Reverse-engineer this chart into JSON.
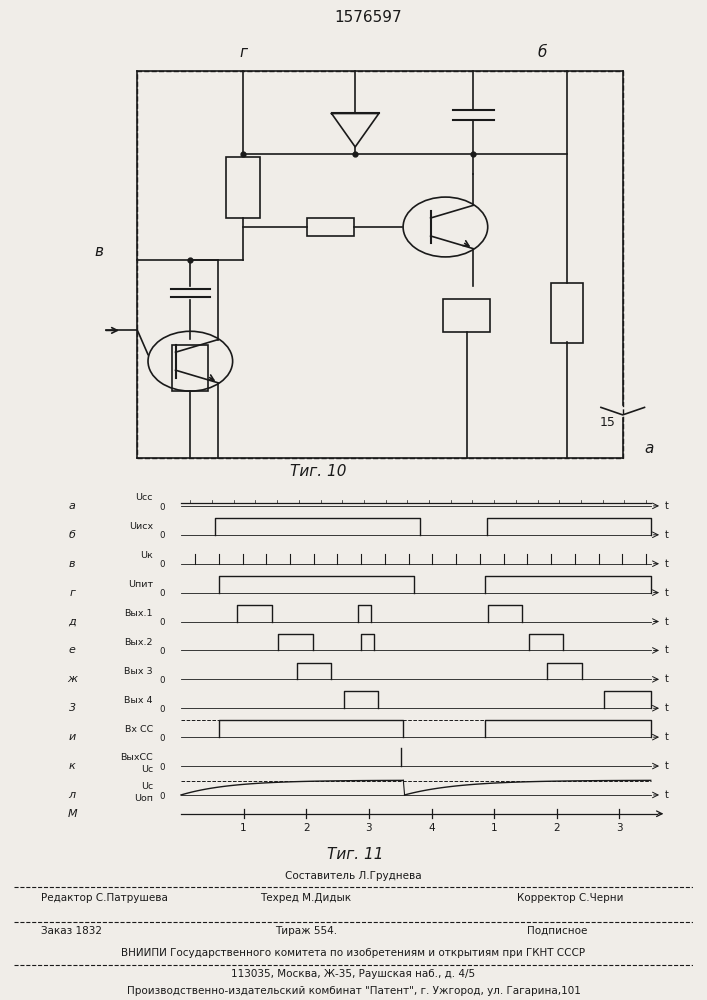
{
  "title_number": "1576597",
  "fig10_caption": "Τиг. 10",
  "fig11_caption": "Τиг. 11",
  "background_color": "#f0ede8",
  "line_color": "#1a1a1a",
  "row_labels": [
    "а",
    "б",
    "в",
    "г",
    "д",
    "е",
    "ж",
    "3",
    "и",
    "к",
    "л"
  ],
  "signal_labels": [
    "Uсс",
    "Uисх",
    "Uк",
    "Uпит",
    "Вых.1",
    "Вых.2",
    "Вых 3",
    "Вых 4",
    "Вх СС",
    "ВыхСС",
    "Uс"
  ],
  "signal_labels2": [
    "",
    "",
    "",
    "",
    "",
    "",
    "",
    "",
    "",
    "Uс",
    "Uоп"
  ],
  "time_axis_label": "М",
  "time_ticks": [
    "1",
    "2",
    "3",
    "4",
    "1",
    "2",
    "3"
  ],
  "footer_staff": "Составитель Л.Груднева",
  "footer_editor": "Редактор С.Патрушева",
  "footer_techred": "Техред М.Дидык",
  "footer_corrector": "Корректор С.Черни",
  "footer_order": "Заказ 1832",
  "footer_tirazh": "Тираж 554.",
  "footer_podp": "Подписное",
  "footer_vniip": "ВНИИПИ Государственного комитета по изобретениям и открытиям при ГКНТ СССР",
  "footer_addr": "113035, Москва, Ж-35, Раушская наб., д. 4/5",
  "footer_prod": "Производственно-издательский комбинат \"Патент\", г. Ужгород, ул. Гагарина,101"
}
